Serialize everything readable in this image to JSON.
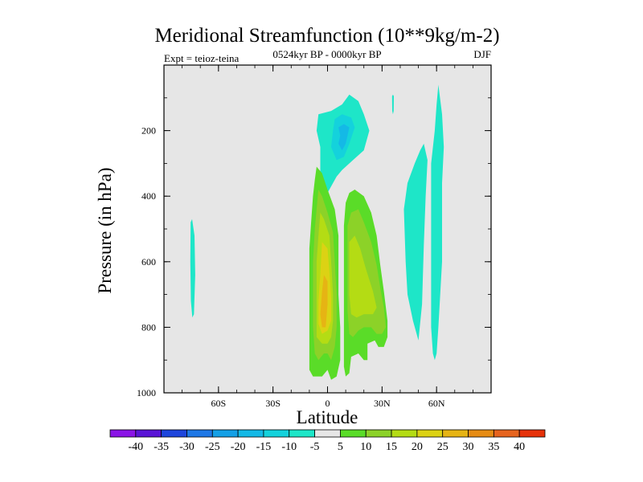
{
  "chart_data": {
    "type": "contour",
    "title": "Meridional Streamfunction (10**9kg/m-2)",
    "subtitle_left": "Expt = teioz-teina",
    "subtitle_center": "0524kyr BP - 0000kyr BP",
    "subtitle_right": "DJF",
    "xlabel": "Latitude",
    "ylabel": "Pressure (in hPa)",
    "xlim": [
      -90,
      90
    ],
    "ylim": [
      1000,
      0
    ],
    "xticks": [
      {
        "value": -60,
        "label": "60S"
      },
      {
        "value": -30,
        "label": "30S"
      },
      {
        "value": 0,
        "label": "0"
      },
      {
        "value": 30,
        "label": "30N"
      },
      {
        "value": 60,
        "label": "60N"
      }
    ],
    "yticks": [
      {
        "value": 200,
        "label": "200"
      },
      {
        "value": 400,
        "label": "400"
      },
      {
        "value": 600,
        "label": "600"
      },
      {
        "value": 800,
        "label": "800"
      },
      {
        "value": 1000,
        "label": "1000"
      }
    ],
    "background_color": "#e6e6e6",
    "contour_levels": [
      -40,
      -35,
      -30,
      -25,
      -20,
      -15,
      -10,
      -5,
      5,
      10,
      15,
      20,
      25,
      30,
      35,
      40
    ],
    "colorbar_colors": [
      "#8a14e6",
      "#5a14d6",
      "#1e46dc",
      "#1e78e6",
      "#14a0e6",
      "#14b9e6",
      "#14d2dc",
      "#1ee6c8",
      "#e6e6e6",
      "#5adc28",
      "#8cd228",
      "#b4dc14",
      "#dcd214",
      "#e6b414",
      "#e68c14",
      "#e6641e",
      "#e6320a"
    ],
    "regions": [
      {
        "name": "southern-polar-cell",
        "color": "#1ee6c8",
        "points": [
          [
            -74.5,
            470
          ],
          [
            -73.2,
            520
          ],
          [
            -72.8,
            640
          ],
          [
            -73.5,
            760
          ],
          [
            -74.4,
            770
          ],
          [
            -75.2,
            720
          ],
          [
            -75.5,
            600
          ],
          [
            -75.3,
            480
          ]
        ]
      },
      {
        "name": "upper-negative-cell-outer",
        "color": "#1ee6c8",
        "points": [
          [
            -5,
            150
          ],
          [
            2,
            140
          ],
          [
            8,
            120
          ],
          [
            12,
            90
          ],
          [
            17,
            110
          ],
          [
            20,
            150
          ],
          [
            23,
            200
          ],
          [
            20,
            260
          ],
          [
            14,
            290
          ],
          [
            8,
            320
          ],
          [
            5,
            340
          ],
          [
            0,
            390
          ],
          [
            -4,
            330
          ],
          [
            -4,
            250
          ],
          [
            -6,
            200
          ]
        ]
      },
      {
        "name": "upper-negative-cell-inner",
        "color": "#14d2dc",
        "points": [
          [
            4,
            165
          ],
          [
            8,
            150
          ],
          [
            13,
            160
          ],
          [
            15,
            190
          ],
          [
            12,
            240
          ],
          [
            9,
            280
          ],
          [
            5,
            290
          ],
          [
            2,
            250
          ],
          [
            3,
            200
          ]
        ]
      },
      {
        "name": "upper-negative-cell-core",
        "color": "#14b9e6",
        "points": [
          [
            6,
            190
          ],
          [
            9,
            180
          ],
          [
            12,
            190
          ],
          [
            11,
            215
          ],
          [
            10,
            240
          ],
          [
            8,
            260
          ],
          [
            6,
            240
          ],
          [
            7,
            215
          ]
        ]
      },
      {
        "name": "northern-ferrel-left",
        "color": "#1ee6c8",
        "points": [
          [
            42,
            440
          ],
          [
            44,
            360
          ],
          [
            48,
            300
          ],
          [
            51,
            260
          ],
          [
            53,
            240
          ],
          [
            55,
            290
          ],
          [
            54,
            400
          ],
          [
            53,
            550
          ],
          [
            52,
            730
          ],
          [
            50,
            840
          ],
          [
            47,
            780
          ],
          [
            44,
            700
          ],
          [
            43,
            600
          ]
        ]
      },
      {
        "name": "northern-ferrel-right",
        "color": "#1ee6c8",
        "points": [
          [
            57,
            300
          ],
          [
            59,
            200
          ],
          [
            60,
            120
          ],
          [
            61,
            60
          ],
          [
            63,
            150
          ],
          [
            64,
            250
          ],
          [
            63,
            360
          ],
          [
            63,
            500
          ],
          [
            63,
            600
          ],
          [
            62,
            700
          ],
          [
            61,
            800
          ],
          [
            60,
            880
          ],
          [
            59,
            900
          ],
          [
            58,
            880
          ],
          [
            57,
            800
          ],
          [
            57,
            700
          ],
          [
            57,
            600
          ],
          [
            57,
            500
          ],
          [
            57,
            400
          ]
        ]
      },
      {
        "name": "northern-ferrel-sliver",
        "color": "#1ee6c8",
        "points": [
          [
            35.5,
            95
          ],
          [
            36,
            90
          ],
          [
            36.5,
            95
          ],
          [
            36.4,
            140
          ],
          [
            36,
            150
          ],
          [
            35.6,
            140
          ]
        ]
      },
      {
        "name": "northern-positive-cell",
        "color": "#5adc28",
        "points": [
          [
            9,
            490
          ],
          [
            10,
            420
          ],
          [
            12,
            390
          ],
          [
            15,
            380
          ],
          [
            20,
            400
          ],
          [
            24,
            450
          ],
          [
            27,
            520
          ],
          [
            29,
            610
          ],
          [
            31,
            690
          ],
          [
            33,
            780
          ],
          [
            33,
            830
          ],
          [
            31,
            860
          ],
          [
            28,
            860
          ],
          [
            26,
            840
          ],
          [
            22,
            850
          ],
          [
            22,
            900
          ],
          [
            20,
            900
          ],
          [
            17,
            880
          ],
          [
            13,
            890
          ],
          [
            12,
            940
          ],
          [
            10,
            950
          ],
          [
            9,
            920
          ],
          [
            9,
            800
          ],
          [
            9,
            700
          ],
          [
            9,
            600
          ]
        ]
      },
      {
        "name": "northern-positive-inner",
        "color": "#8cd228",
        "points": [
          [
            11,
            490
          ],
          [
            13,
            450
          ],
          [
            17,
            440
          ],
          [
            20,
            480
          ],
          [
            24,
            540
          ],
          [
            27,
            610
          ],
          [
            29,
            680
          ],
          [
            31,
            740
          ],
          [
            32,
            800
          ],
          [
            30,
            820
          ],
          [
            27,
            820
          ],
          [
            24,
            800
          ],
          [
            20,
            800
          ],
          [
            17,
            810
          ],
          [
            14,
            830
          ],
          [
            12,
            820
          ],
          [
            11,
            750
          ],
          [
            11,
            650
          ],
          [
            11,
            560
          ]
        ]
      },
      {
        "name": "northern-positive-core",
        "color": "#b4dc14",
        "points": [
          [
            12,
            540
          ],
          [
            15,
            520
          ],
          [
            18,
            560
          ],
          [
            21,
            620
          ],
          [
            25,
            690
          ],
          [
            27,
            740
          ],
          [
            25,
            760
          ],
          [
            20,
            760
          ],
          [
            16,
            770
          ],
          [
            13,
            760
          ],
          [
            12,
            700
          ],
          [
            12,
            620
          ]
        ]
      },
      {
        "name": "equatorial-positive-cell",
        "color": "#5adc28",
        "points": [
          [
            -6,
            310
          ],
          [
            -3,
            330
          ],
          [
            0,
            380
          ],
          [
            4,
            440
          ],
          [
            6,
            520
          ],
          [
            6,
            600
          ],
          [
            6,
            700
          ],
          [
            7,
            800
          ],
          [
            7,
            900
          ],
          [
            5,
            950
          ],
          [
            2,
            960
          ],
          [
            0,
            930
          ],
          [
            -3,
            950
          ],
          [
            -8,
            950
          ],
          [
            -10,
            930
          ],
          [
            -10,
            850
          ],
          [
            -10,
            750
          ],
          [
            -10,
            650
          ],
          [
            -10,
            560
          ],
          [
            -9,
            480
          ],
          [
            -8,
            400
          ],
          [
            -7,
            350
          ]
        ]
      },
      {
        "name": "equatorial-positive-inner",
        "color": "#8cd228",
        "points": [
          [
            -5,
            380
          ],
          [
            -3,
            400
          ],
          [
            0,
            450
          ],
          [
            3,
            510
          ],
          [
            4,
            600
          ],
          [
            5,
            700
          ],
          [
            5,
            800
          ],
          [
            4,
            860
          ],
          [
            2,
            900
          ],
          [
            0,
            880
          ],
          [
            -2,
            880
          ],
          [
            -5,
            900
          ],
          [
            -7,
            880
          ],
          [
            -8,
            800
          ],
          [
            -8,
            700
          ],
          [
            -8,
            600
          ],
          [
            -7,
            500
          ],
          [
            -6,
            440
          ]
        ]
      },
      {
        "name": "equatorial-positive-mid",
        "color": "#b4dc14",
        "points": [
          [
            -4,
            450
          ],
          [
            -2,
            470
          ],
          [
            1,
            520
          ],
          [
            2,
            600
          ],
          [
            3,
            700
          ],
          [
            3,
            780
          ],
          [
            2,
            830
          ],
          [
            0,
            850
          ],
          [
            -3,
            850
          ],
          [
            -6,
            830
          ],
          [
            -6,
            760
          ],
          [
            -6,
            680
          ],
          [
            -6,
            600
          ],
          [
            -5,
            520
          ]
        ]
      },
      {
        "name": "equatorial-positive-high",
        "color": "#dcd214",
        "points": [
          [
            -3,
            540
          ],
          [
            0,
            560
          ],
          [
            1,
            630
          ],
          [
            2,
            710
          ],
          [
            2,
            780
          ],
          [
            0,
            810
          ],
          [
            -3,
            820
          ],
          [
            -5,
            790
          ],
          [
            -5,
            720
          ],
          [
            -4,
            640
          ]
        ]
      },
      {
        "name": "equatorial-positive-core",
        "color": "#e6b414",
        "points": [
          [
            -2,
            640
          ],
          [
            0,
            660
          ],
          [
            0,
            730
          ],
          [
            -1,
            800
          ],
          [
            -3,
            800
          ],
          [
            -4,
            760
          ],
          [
            -3,
            690
          ]
        ]
      }
    ]
  }
}
